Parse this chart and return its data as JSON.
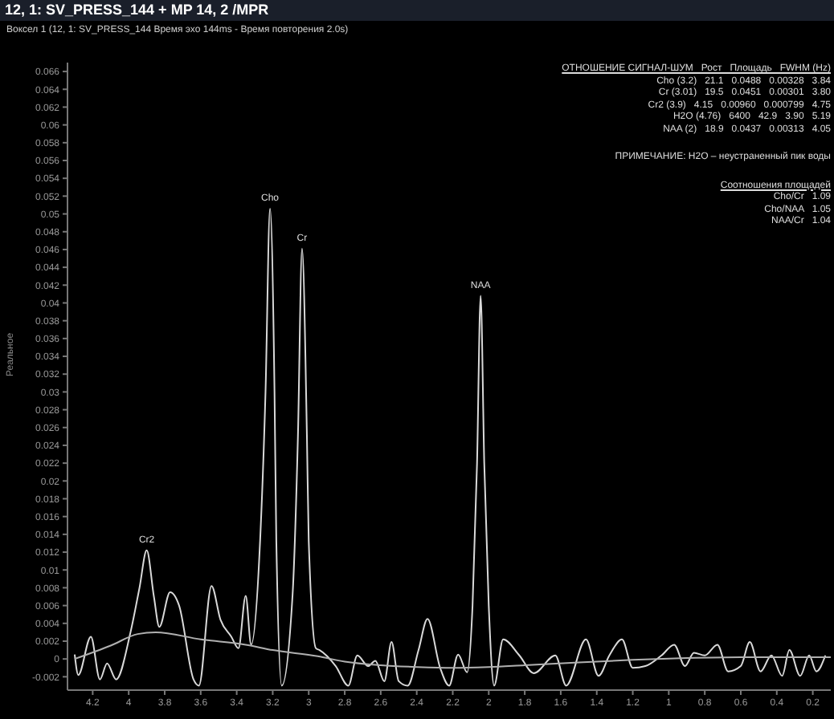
{
  "chart_data": {
    "type": "line",
    "title": "12, 1: SV_PRESS_144 + MP 14, 2 /MPR",
    "subtitle": "Воксел 1 (12, 1: SV_PRESS_144 Время эхо 144ms - Время повторения 2.0s)",
    "ylabel": "Реальное",
    "marker": "none",
    "line_style": "solid",
    "xlim": [
      4.34,
      0.1
    ],
    "xticks": [
      4.2,
      4,
      3.8,
      3.6,
      3.4,
      3.2,
      3,
      2.8,
      2.6,
      2.4,
      2.2,
      2,
      1.8,
      1.6,
      1.4,
      1.2,
      1,
      0.8,
      0.6,
      0.4,
      0.2
    ],
    "ylim": [
      -0.0035,
      0.067
    ],
    "yticks": [
      -0.002,
      0,
      0.002,
      0.004,
      0.006,
      0.008,
      0.01,
      0.012,
      0.014,
      0.016,
      0.018,
      0.02,
      0.022,
      0.024,
      0.026,
      0.028,
      0.03,
      0.032,
      0.034,
      0.036,
      0.038,
      0.04,
      0.042,
      0.044,
      0.046,
      0.048,
      0.05,
      0.052,
      0.054,
      0.056,
      0.058,
      0.06,
      0.062,
      0.064,
      0.066
    ],
    "series": [
      {
        "color": "#d9d9d9",
        "x": [
          4.3,
          4.28,
          4.21,
          4.16,
          4.12,
          4.07,
          3.99,
          3.94,
          3.9,
          3.86,
          3.83,
          3.77,
          3.72,
          3.64,
          3.61,
          3.54,
          3.49,
          3.43,
          3.39,
          3.35,
          3.32,
          3.27,
          3.24,
          3.215,
          3.19,
          3.18,
          3.15,
          3.09,
          3.06,
          3.037,
          3.01,
          3.0,
          2.96,
          2.94,
          2.85,
          2.78,
          2.73,
          2.67,
          2.63,
          2.58,
          2.54,
          2.5,
          2.45,
          2.39,
          2.34,
          2.27,
          2.22,
          2.17,
          2.12,
          2.09,
          2.065,
          2.045,
          2.025,
          2.0,
          1.97,
          1.92,
          1.83,
          1.75,
          1.63,
          1.57,
          1.46,
          1.39,
          1.33,
          1.26,
          1.2,
          1.13,
          1.04,
          0.97,
          0.91,
          0.86,
          0.8,
          0.73,
          0.67,
          0.6,
          0.55,
          0.49,
          0.43,
          0.37,
          0.33,
          0.27,
          0.22,
          0.18,
          0.13
        ],
        "values": [
          0.0005,
          -0.0018,
          0.0025,
          -0.0023,
          -0.0005,
          -0.0023,
          0.003,
          0.008,
          0.0122,
          0.007,
          0.0036,
          0.0075,
          0.006,
          -0.0023,
          -0.003,
          0.0082,
          0.0044,
          0.0025,
          0.0012,
          0.0071,
          0.0016,
          0.0133,
          0.03,
          0.0506,
          0.03,
          0.0133,
          -0.003,
          0.0071,
          0.025,
          0.0461,
          0.025,
          0.0133,
          0.0012,
          0.001,
          -0.0008,
          -0.003,
          0.0004,
          -0.0008,
          -0.0002,
          -0.0025,
          0.0019,
          -0.0025,
          -0.003,
          0.001,
          0.0045,
          -0.001,
          -0.003,
          0.0005,
          -0.0015,
          0.006,
          0.022,
          0.0408,
          0.022,
          0.006,
          -0.003,
          0.0022,
          0.0004,
          -0.0016,
          0.0004,
          -0.003,
          0.0022,
          -0.0019,
          0.0004,
          0.0022,
          -0.001,
          -0.0008,
          0.0004,
          0.0016,
          -0.0008,
          0.0007,
          0.0004,
          0.0016,
          -0.0014,
          -0.0008,
          0.0019,
          -0.0014,
          0.0004,
          -0.0019,
          0.001,
          -0.0019,
          0.0004,
          -0.0014,
          0.0004
        ]
      },
      {
        "color": "#b0b0b0",
        "x": [
          4.3,
          4.1,
          3.95,
          3.85,
          3.6,
          3.35,
          3.2,
          2.95,
          2.8,
          2.6,
          2.4,
          2.2,
          2.0,
          1.8,
          1.5,
          1.2,
          0.9,
          0.6,
          0.3,
          0.1
        ],
        "values": [
          0.0,
          0.0015,
          0.0028,
          0.003,
          0.0022,
          0.0016,
          0.001,
          0.0003,
          -0.0003,
          -0.0007,
          -0.0009,
          -0.001,
          -0.0009,
          -0.0007,
          -0.0004,
          -0.0001,
          0.0001,
          0.0002,
          0.0002,
          0.0002
        ]
      }
    ],
    "annotations": [
      {
        "text": "Cr2",
        "x": 3.9,
        "y": 0.0122
      },
      {
        "text": "Cho",
        "x": 3.215,
        "y": 0.0506
      },
      {
        "text": "Cr",
        "x": 3.037,
        "y": 0.0461
      },
      {
        "text": "NAA",
        "x": 2.045,
        "y": 0.0408
      },
      "ОТНОШЕНИЕ СИГНАЛ-ШУМ   Рост   Площадь   FWHM (Hz)",
      "Cho (3.2)   21.1   0.0488   0.00328   3.84",
      "Cr (3.01)   19.5   0.0451   0.00301   3.80",
      "Cr2 (3.9)   4.15   0.00960   0.000799   4.75",
      "H2O (4.76)   6400   42.9   3.90   5.19",
      "NAA (2)   18.9   0.0437   0.00313   4.05",
      "ПРИМЕЧАНИЕ: H2O – неустраненный пик воды",
      "Соотношения площадей",
      "Cho/Cr   1.09",
      "Cho/NAA   1.05",
      "NAA/Cr   1.04"
    ]
  }
}
